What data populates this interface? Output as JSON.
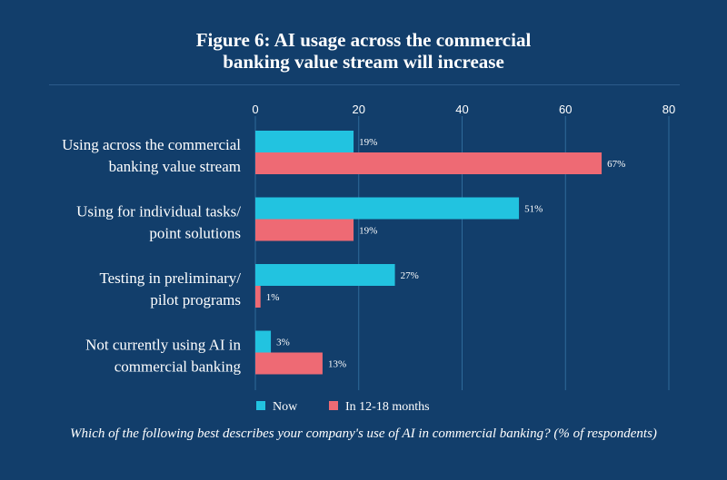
{
  "title_line1": "Figure 6: AI usage across the commercial",
  "title_line2": "banking value stream will increase",
  "caption": "Which of the following best describes your company's use of AI in commercial banking? (% of respondents)",
  "colors": {
    "background": "#123e6b",
    "now": "#22c3e0",
    "future": "#ee6a74",
    "grid": "#2f6a9a"
  },
  "chart_data": {
    "type": "bar",
    "orientation": "horizontal",
    "categories": [
      [
        "Using across the commercial",
        "banking value stream"
      ],
      [
        "Using for individual tasks/",
        "point solutions"
      ],
      [
        "Testing in preliminary/",
        "pilot programs"
      ],
      [
        "Not currently using AI in",
        "commercial banking"
      ]
    ],
    "series": [
      {
        "name": "Now",
        "values": [
          19,
          51,
          27,
          3
        ],
        "labels": [
          "19%",
          "51%",
          "27%",
          "3%"
        ]
      },
      {
        "name": "In 12-18 months",
        "values": [
          67,
          19,
          1,
          13
        ],
        "labels": [
          "67%",
          "19%",
          "1%",
          "13%"
        ]
      }
    ],
    "xlim": [
      0,
      80
    ],
    "xticks": [
      0,
      20,
      40,
      60,
      80
    ],
    "grid": true,
    "legend": "bottom"
  }
}
